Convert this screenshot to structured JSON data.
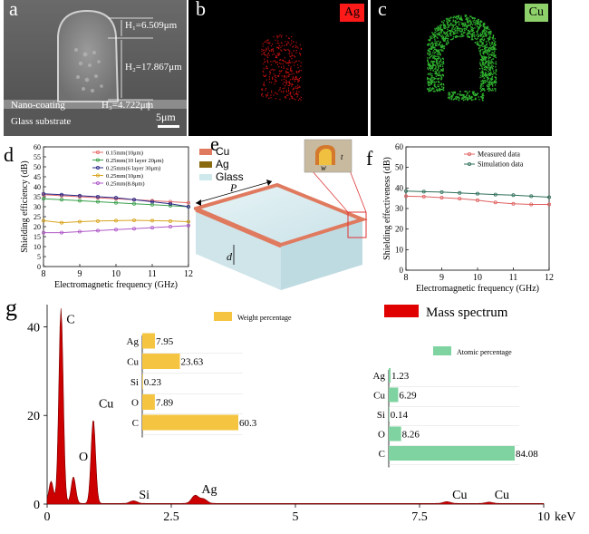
{
  "panel_a": {
    "label": "a",
    "h1": "H₁=6.509μm",
    "h2": "H₂=17.867μm",
    "h3": "H₃=4.722μm",
    "coating": "Nano-coating",
    "substrate": "Glass substrate",
    "scale": "5μm"
  },
  "panel_b": {
    "label": "b",
    "tag": "Ag",
    "tag_color": "#ff1a1a"
  },
  "panel_c": {
    "label": "c",
    "tag": "Cu",
    "tag_color": "#8ed16a"
  },
  "panel_e": {
    "label": "e",
    "legend": [
      "Cu",
      "Ag",
      "Glass"
    ],
    "legend_colors": [
      "#e07a5f",
      "#8a6a10",
      "#cfe8ec"
    ],
    "p": "P",
    "d": "d",
    "w": "w",
    "t": "t"
  },
  "chart_data": [
    {
      "id": "d",
      "type": "line",
      "label": "d",
      "xlabel": "Electromagnetic frequency (GHz)",
      "ylabel": "Shielding efficiency (dB)",
      "xlim": [
        8,
        12
      ],
      "ylim": [
        0,
        60
      ],
      "xticks": [
        8,
        9,
        10,
        11,
        12
      ],
      "yticks": [
        0,
        5,
        10,
        15,
        20,
        25,
        30,
        35,
        40,
        45,
        50,
        55,
        60
      ],
      "x": [
        8,
        8.5,
        9,
        9.5,
        10,
        10.5,
        11,
        11.5,
        12
      ],
      "series": [
        {
          "name": "0.15mm(10μm)",
          "color": "#e66a6a",
          "values": [
            36,
            35.5,
            35,
            34.5,
            34,
            33.5,
            33,
            32.5,
            32
          ]
        },
        {
          "name": "0.25mm(10 layer 20μm)",
          "color": "#3aa04a",
          "values": [
            34,
            33.5,
            33,
            32.5,
            32,
            31.5,
            31,
            30.5,
            30
          ]
        },
        {
          "name": "0.25mm(6 layer 30μm)",
          "color": "#2a2a8a",
          "values": [
            36.5,
            36,
            35.5,
            35,
            34.5,
            33.5,
            32.5,
            31.5,
            30
          ]
        },
        {
          "name": "0.25mm(10μm)",
          "color": "#d9a520",
          "values": [
            23,
            22,
            22.5,
            22.8,
            23,
            23.2,
            23,
            22.8,
            22.5
          ]
        },
        {
          "name": "0.25mm(8.8μm)",
          "color": "#b05ac8",
          "values": [
            17,
            17,
            17.5,
            18,
            18.5,
            19,
            19.5,
            20,
            20.5
          ]
        }
      ]
    },
    {
      "id": "f",
      "type": "line",
      "label": "f",
      "xlabel": "Electromagnetic frequency (GHz)",
      "ylabel": "Shielding effectiveness (dB)",
      "xlim": [
        8,
        12
      ],
      "ylim": [
        0,
        60
      ],
      "xticks": [
        8,
        9,
        10,
        11,
        12
      ],
      "yticks": [
        0,
        10,
        20,
        30,
        40,
        50,
        60
      ],
      "x": [
        8,
        8.5,
        9,
        9.5,
        10,
        10.5,
        11,
        11.5,
        12
      ],
      "series": [
        {
          "name": "Measured data",
          "color": "#e06060",
          "values": [
            36,
            35.8,
            35.3,
            34.8,
            34,
            33,
            32.3,
            32,
            32
          ]
        },
        {
          "name": "Simulation data",
          "color": "#2f6f5a",
          "values": [
            38.5,
            38.2,
            38,
            37.6,
            37.2,
            36.8,
            36.5,
            36,
            35.5
          ]
        }
      ]
    },
    {
      "id": "g",
      "type": "area",
      "label": "g",
      "xlabel": "keV",
      "xlim": [
        0,
        10
      ],
      "ylim": [
        0,
        45
      ],
      "xticks": [
        "0",
        "2.5",
        "5",
        "7.5",
        "10"
      ],
      "xtick_values": [
        0,
        2.5,
        5,
        7.5,
        10
      ],
      "yticks": [
        0,
        20,
        40
      ],
      "legend": "Mass spectrum",
      "color": "#cc0000",
      "peaks": [
        {
          "x": 0.08,
          "y": 5
        },
        {
          "x": 0.28,
          "y": 44
        },
        {
          "x": 0.53,
          "y": 6
        },
        {
          "x": 0.93,
          "y": 19
        },
        {
          "x": 1.74,
          "y": 0.6
        },
        {
          "x": 2.98,
          "y": 1.8
        },
        {
          "x": 3.15,
          "y": 1
        },
        {
          "x": 8.05,
          "y": 0.4
        },
        {
          "x": 8.9,
          "y": 0.3
        }
      ],
      "peak_labels": [
        {
          "text": "C",
          "x": 0.28,
          "y": 40
        },
        {
          "text": "O",
          "x": 0.53,
          "y": 9
        },
        {
          "text": "Cu",
          "x": 0.93,
          "y": 21
        },
        {
          "text": "Si",
          "x": 1.74,
          "y": 0.4
        },
        {
          "text": "Ag",
          "x": 3.0,
          "y": 1.6
        },
        {
          "text": "Cu",
          "x": 8.05,
          "y": 0.4
        },
        {
          "text": "Cu",
          "x": 8.9,
          "y": 0.4
        }
      ]
    },
    {
      "id": "g-weight",
      "type": "bar",
      "orientation": "horizontal",
      "legend": "Weight percentage",
      "color": "#f5c542",
      "xlim": [
        0,
        60.3
      ],
      "categories": [
        "Ag",
        "Cu",
        "Si",
        "O",
        "C"
      ],
      "values": [
        7.95,
        23.63,
        0.23,
        7.89,
        60.3
      ]
    },
    {
      "id": "g-atomic",
      "type": "bar",
      "orientation": "horizontal",
      "legend": "Atomic percentage",
      "color": "#7fd3a0",
      "xlim": [
        0,
        84.08
      ],
      "categories": [
        "Ag",
        "Cu",
        "Si",
        "O",
        "C"
      ],
      "values": [
        1.23,
        6.29,
        0.14,
        8.26,
        84.08
      ]
    }
  ]
}
